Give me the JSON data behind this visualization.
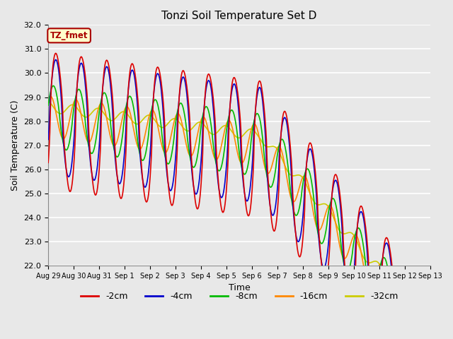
{
  "title": "Tonzi Soil Temperature Set D",
  "xlabel": "Time",
  "ylabel": "Soil Temperature (C)",
  "ylim": [
    22.0,
    32.0
  ],
  "yticks": [
    22.0,
    23.0,
    24.0,
    25.0,
    26.0,
    27.0,
    28.0,
    29.0,
    30.0,
    31.0,
    32.0
  ],
  "fig_bg_color": "#e8e8e8",
  "plot_bg_color": "#e8e8e8",
  "xtick_labels": [
    "Aug 29",
    "Aug 30",
    "Aug 31",
    "Sep 1",
    "Sep 2",
    "Sep 3",
    "Sep 4",
    "Sep 5",
    "Sep 6",
    "Sep 7",
    "Sep 8",
    "Sep 9",
    "Sep 10",
    "Sep 11",
    "Sep 12",
    "Sep 13"
  ],
  "label_box_text": "TZ_fmet",
  "label_box_facecolor": "#ffffcc",
  "label_box_edgecolor": "#aa0000",
  "legend_colors": [
    "#dd0000",
    "#0000cc",
    "#00bb00",
    "#ff8800",
    "#cccc00"
  ],
  "legend_labels": [
    "-2cm",
    "-4cm",
    "-8cm",
    "-16cm",
    "-32cm"
  ],
  "line_lw": 1.2,
  "colors": {
    "2cm": "#dd0000",
    "4cm": "#0000cc",
    "8cm": "#00bb00",
    "16cm": "#ff8800",
    "32cm": "#cccc00"
  }
}
